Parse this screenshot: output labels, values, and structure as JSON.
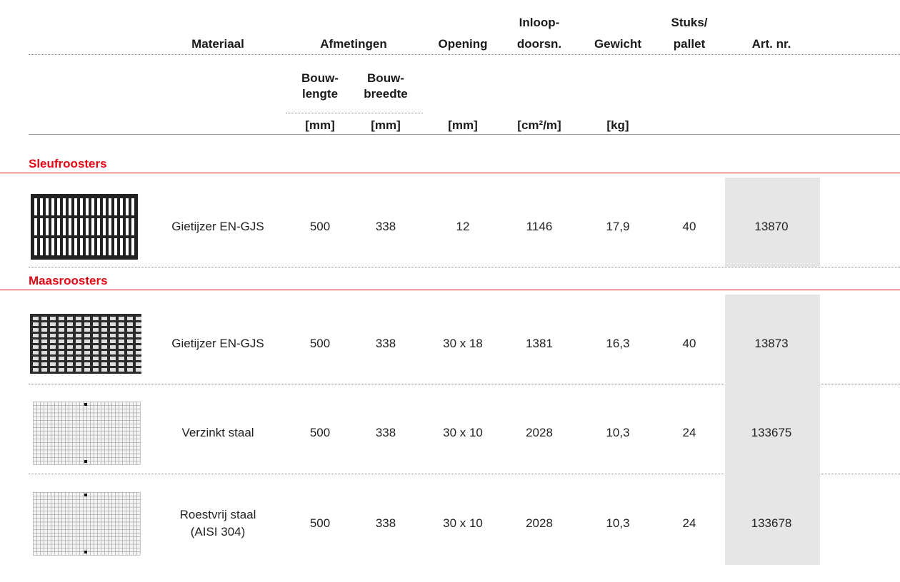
{
  "header": {
    "columns": [
      [
        "Materiaal"
      ],
      [
        "Afmetingen"
      ],
      [
        "Opening"
      ],
      [
        "Inloop-",
        "doorsn."
      ],
      [
        "Gewicht"
      ],
      [
        "Stuks/",
        "pallet"
      ],
      [
        "Art. nr."
      ]
    ],
    "sub_columns": [
      [
        "Bouw-",
        "lengte"
      ],
      [
        "Bouw-",
        "breedte"
      ]
    ],
    "units": [
      "[mm]",
      "[mm]",
      "[mm]",
      "[cm²/m]",
      "[kg]"
    ]
  },
  "sections": [
    {
      "title": "Sleufroosters",
      "rows": [
        {
          "material": [
            "Gietijzer EN-GJS"
          ],
          "lengte": 500,
          "breedte": 338,
          "opening": "12",
          "inloop": 1146,
          "gewicht": "17,9",
          "stuks": 40,
          "art_nr": 13870
        }
      ]
    },
    {
      "title": "Maasroosters",
      "rows": [
        {
          "material": [
            "Gietijzer EN-GJS"
          ],
          "lengte": 500,
          "breedte": 338,
          "opening": "30 x 18",
          "inloop": 1381,
          "gewicht": "16,3",
          "stuks": 40,
          "art_nr": 13873
        },
        {
          "material": [
            "Verzinkt staal"
          ],
          "lengte": 500,
          "breedte": 338,
          "opening": "30 x 10",
          "inloop": 2028,
          "gewicht": "10,3",
          "stuks": 24,
          "art_nr": 133675
        },
        {
          "material": [
            "Roestvrij staal",
            "(AISI 304)"
          ],
          "lengte": 500,
          "breedte": 338,
          "opening": "30 x 10",
          "inloop": 2028,
          "gewicht": "10,3",
          "stuks": 24,
          "art_nr": 133678
        }
      ]
    }
  ]
}
